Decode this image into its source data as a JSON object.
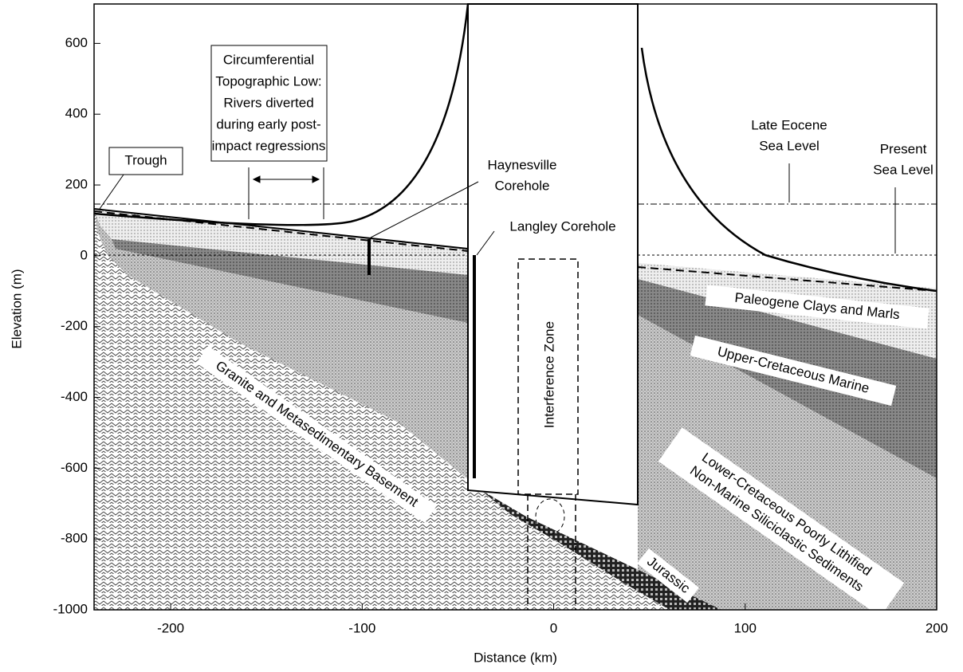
{
  "axes": {
    "x_label": "Distance (km)",
    "y_label": "Elevation (m)",
    "xlim": [
      -240,
      200
    ],
    "ylim": [
      -1000,
      700
    ],
    "xticks": [
      -200,
      -100,
      0,
      100,
      200
    ],
    "yticks": [
      -1000,
      -800,
      -600,
      -400,
      -200,
      0,
      200,
      400,
      600
    ]
  },
  "labels": {
    "trough": "Trough",
    "topographic_low": [
      "Circumferential",
      "Topographic Low:",
      "Rivers diverted",
      "during early post-",
      "impact regressions"
    ],
    "haynesville": [
      "Haynesville",
      "Corehole"
    ],
    "langley": "Langley Corehole",
    "late_eocene": [
      "Late Eocene",
      "Sea Level"
    ],
    "present_sea_level": [
      "Present",
      "Sea Level"
    ],
    "interference_zone": "Interference Zone",
    "paleogene": "Paleogene Clays and Marls",
    "upper_cretaceous": "Upper-Cretaceous Marine",
    "lower_cretaceous": [
      "Lower-Cretaceous Poorly Lithified",
      "Non-Marine Siliciclastic Sediments"
    ],
    "basement": "Granite and Metasedimentary Basement",
    "jurassic": "Jurassic"
  }
}
